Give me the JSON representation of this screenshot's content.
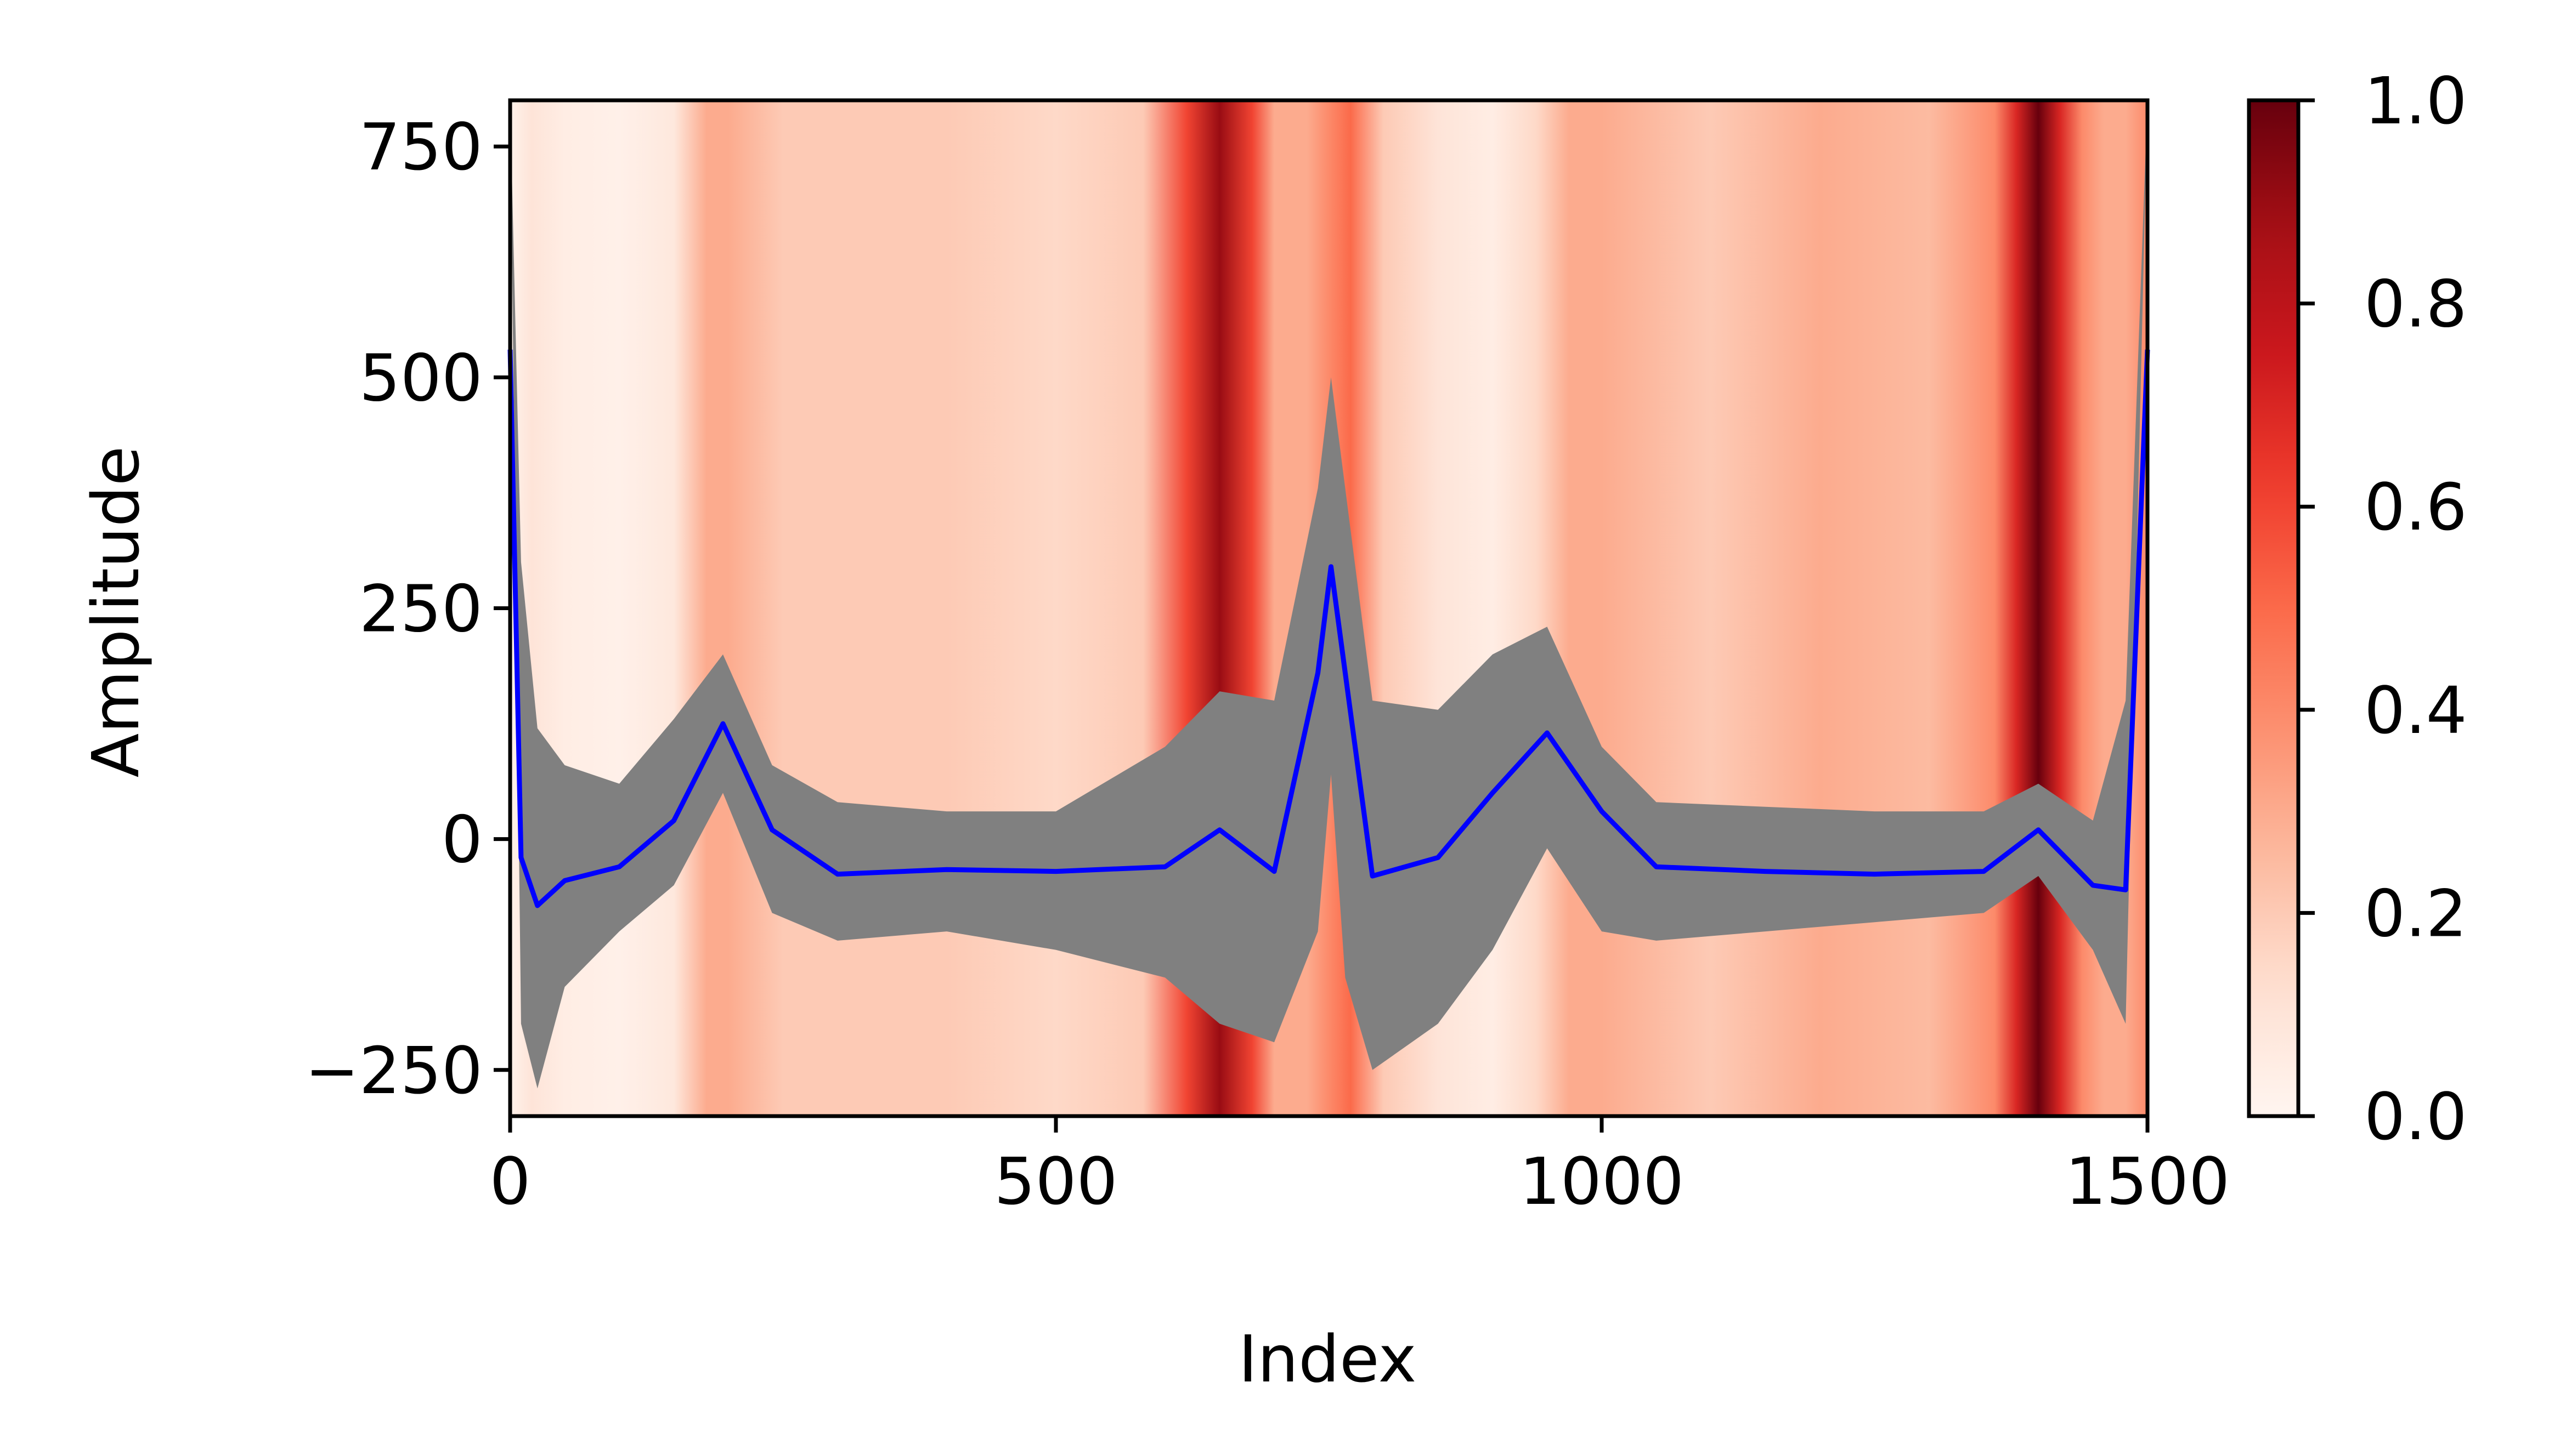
{
  "chart_data": {
    "type": "line",
    "xlabel": "Index",
    "ylabel": "Amplitude",
    "xlim": [
      0,
      1500
    ],
    "ylim": [
      -300,
      800
    ],
    "x_ticks": [
      0,
      500,
      1000,
      1500
    ],
    "x_tick_labels": [
      "0",
      "500",
      "1000",
      "1500"
    ],
    "y_ticks": [
      -250,
      0,
      250,
      500,
      750
    ],
    "y_tick_labels": [
      "−250",
      "0",
      "250",
      "500",
      "750"
    ],
    "series": [
      {
        "kind": "line",
        "color": "#0000ff",
        "x": [
          0,
          10,
          25,
          50,
          100,
          150,
          195,
          240,
          300,
          400,
          500,
          600,
          650,
          700,
          740,
          752,
          765,
          790,
          850,
          900,
          950,
          1000,
          1050,
          1150,
          1250,
          1350,
          1400,
          1450,
          1480,
          1500
        ],
        "y": [
          530,
          -20,
          -72,
          -45,
          -30,
          20,
          125,
          10,
          -38,
          -33,
          -35,
          -30,
          10,
          -35,
          180,
          295,
          180,
          -40,
          -20,
          50,
          115,
          30,
          -30,
          -35,
          -38,
          -35,
          10,
          -50,
          -55,
          530
        ]
      },
      {
        "kind": "band",
        "color": "#808080",
        "x": [
          0,
          10,
          25,
          50,
          100,
          150,
          195,
          240,
          300,
          400,
          500,
          600,
          650,
          700,
          740,
          752,
          765,
          790,
          850,
          900,
          950,
          1000,
          1050,
          1150,
          1250,
          1350,
          1400,
          1450,
          1480,
          1500
        ],
        "upper": [
          800,
          300,
          120,
          80,
          60,
          130,
          200,
          80,
          40,
          30,
          30,
          100,
          160,
          150,
          380,
          500,
          380,
          150,
          140,
          200,
          230,
          100,
          40,
          35,
          30,
          30,
          60,
          20,
          150,
          800
        ],
        "lower": [
          800,
          -200,
          -270,
          -160,
          -100,
          -50,
          50,
          -80,
          -110,
          -100,
          -120,
          -150,
          -200,
          -220,
          -100,
          70,
          -150,
          -250,
          -200,
          -120,
          -10,
          -100,
          -110,
          -100,
          -90,
          -80,
          -40,
          -120,
          -200,
          800
        ]
      }
    ],
    "heatmap": {
      "colormap": "Reds",
      "range": [
        0,
        1
      ],
      "x": [
        0,
        20,
        50,
        100,
        150,
        180,
        200,
        250,
        300,
        400,
        500,
        580,
        620,
        650,
        680,
        700,
        730,
        750,
        770,
        800,
        850,
        900,
        940,
        970,
        1000,
        1100,
        1200,
        1300,
        1360,
        1380,
        1400,
        1420,
        1440,
        1460,
        1480,
        1500
      ],
      "values": [
        0.02,
        0.1,
        0.05,
        0.03,
        0.08,
        0.3,
        0.3,
        0.2,
        0.2,
        0.2,
        0.15,
        0.2,
        0.6,
        0.9,
        0.6,
        0.3,
        0.3,
        0.4,
        0.5,
        0.2,
        0.1,
        0.05,
        0.15,
        0.3,
        0.3,
        0.2,
        0.3,
        0.25,
        0.4,
        0.7,
        1.0,
        0.7,
        0.4,
        0.3,
        0.3,
        0.4
      ]
    },
    "colorbar": {
      "ticks": [
        0.0,
        0.2,
        0.4,
        0.6,
        0.8,
        1.0
      ],
      "tick_labels": [
        "0.0",
        "0.2",
        "0.4",
        "0.6",
        "0.8",
        "1.0"
      ]
    }
  }
}
